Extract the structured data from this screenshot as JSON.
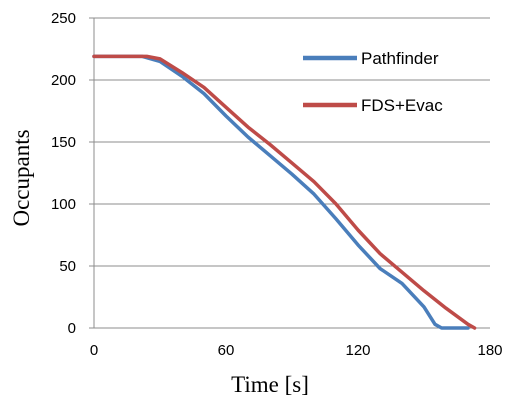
{
  "chart_data": {
    "type": "line",
    "xlabel": "Time [s]",
    "ylabel": "Occupants",
    "xlim": [
      0,
      180
    ],
    "ylim": [
      0,
      250
    ],
    "xticks": [
      0,
      60,
      120,
      180
    ],
    "yticks": [
      0,
      50,
      100,
      150,
      200,
      250
    ],
    "grid": "horizontal",
    "legend_position": "top-right",
    "series": [
      {
        "name": "Pathfinder",
        "color": "#4a7ebb",
        "points": [
          [
            0,
            219
          ],
          [
            22,
            219
          ],
          [
            30,
            215
          ],
          [
            40,
            203
          ],
          [
            50,
            189
          ],
          [
            60,
            171
          ],
          [
            70,
            154
          ],
          [
            80,
            139
          ],
          [
            90,
            124
          ],
          [
            100,
            108
          ],
          [
            110,
            88
          ],
          [
            120,
            67
          ],
          [
            130,
            48
          ],
          [
            140,
            36
          ],
          [
            150,
            17
          ],
          [
            155,
            3
          ],
          [
            158,
            0
          ],
          [
            170,
            0
          ]
        ]
      },
      {
        "name": "FDS+Evac",
        "color": "#be4b48",
        "points": [
          [
            0,
            219
          ],
          [
            24,
            219
          ],
          [
            30,
            217
          ],
          [
            40,
            206
          ],
          [
            50,
            194
          ],
          [
            60,
            178
          ],
          [
            70,
            162
          ],
          [
            80,
            148
          ],
          [
            90,
            133
          ],
          [
            100,
            118
          ],
          [
            110,
            100
          ],
          [
            120,
            79
          ],
          [
            130,
            60
          ],
          [
            140,
            45
          ],
          [
            150,
            30
          ],
          [
            160,
            16
          ],
          [
            170,
            3
          ],
          [
            173,
            0
          ]
        ]
      }
    ]
  }
}
